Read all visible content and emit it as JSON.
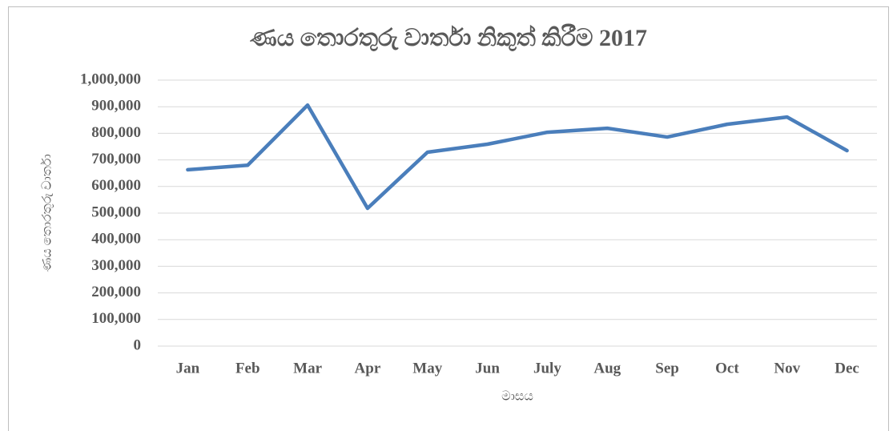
{
  "chart_data": {
    "type": "line",
    "title": "ණය තොරතුරු වාර්තා නිකුත් කිරීම 2017",
    "x_label": "මාසය",
    "y_label": "ණය තොරතුරු වාර්තා",
    "categories": [
      "Jan",
      "Feb",
      "Mar",
      "Apr",
      "May",
      "Jun",
      "July",
      "Aug",
      "Sep",
      "Oct",
      "Nov",
      "Dec"
    ],
    "series": [
      {
        "name": "ණය තොරතුරු වාර්තා",
        "color": "#4a7ebb",
        "values": [
          663000,
          680000,
          906000,
          518000,
          729000,
          759000,
          804000,
          819000,
          786000,
          834000,
          861000,
          735000
        ]
      }
    ],
    "ylim": [
      0,
      1000000
    ],
    "yticks": [
      0,
      {
        "value": 100000,
        "label": "100,000"
      },
      {
        "value": 200000,
        "label": "200,000"
      },
      {
        "value": 300000,
        "label": "300,000"
      },
      {
        "value": 400000,
        "label": "400,000"
      },
      {
        "value": 500000,
        "label": "500,000"
      },
      {
        "value": 600000,
        "label": "600,000"
      },
      {
        "value": 700000,
        "label": "700,000"
      },
      {
        "value": 800000,
        "label": "800,000"
      },
      {
        "value": 900000,
        "label": "900,000"
      },
      {
        "value": 1000000,
        "label": "1,000,000"
      }
    ],
    "grid": true
  }
}
